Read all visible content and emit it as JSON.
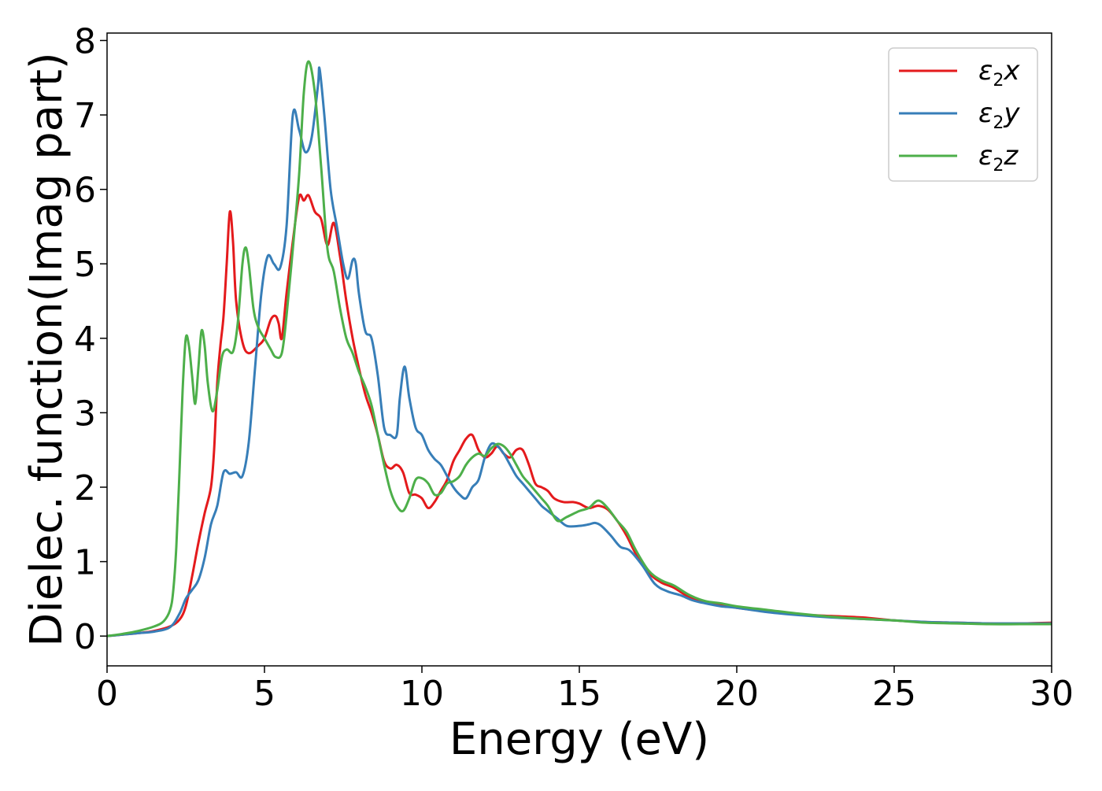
{
  "chart_data": {
    "type": "line",
    "title": "",
    "xlabel": "Energy (eV)",
    "ylabel": "Dielec. function(Imag part)",
    "xlim": [
      0,
      30
    ],
    "ylim": [
      -0.4,
      8.1
    ],
    "xticks": [
      0,
      5,
      10,
      15,
      20,
      25,
      30
    ],
    "yticks": [
      0,
      1,
      2,
      3,
      4,
      5,
      6,
      7,
      8
    ],
    "grid": false,
    "legend_position": "top-right",
    "series": [
      {
        "name": "ε₂x",
        "legend": {
          "base": "ε",
          "sub": "2",
          "tail": "x"
        },
        "color": "#e41a1c",
        "points": [
          [
            0,
            0.0
          ],
          [
            0.5,
            0.02
          ],
          [
            1.0,
            0.04
          ],
          [
            1.5,
            0.07
          ],
          [
            2.0,
            0.13
          ],
          [
            2.3,
            0.22
          ],
          [
            2.5,
            0.4
          ],
          [
            2.7,
            0.8
          ],
          [
            2.9,
            1.25
          ],
          [
            3.1,
            1.65
          ],
          [
            3.3,
            2.0
          ],
          [
            3.4,
            2.5
          ],
          [
            3.5,
            3.4
          ],
          [
            3.6,
            3.9
          ],
          [
            3.7,
            4.3
          ],
          [
            3.8,
            5.0
          ],
          [
            3.9,
            5.7
          ],
          [
            4.0,
            5.3
          ],
          [
            4.1,
            4.5
          ],
          [
            4.3,
            3.95
          ],
          [
            4.5,
            3.8
          ],
          [
            4.8,
            3.9
          ],
          [
            5.0,
            4.0
          ],
          [
            5.2,
            4.25
          ],
          [
            5.35,
            4.3
          ],
          [
            5.45,
            4.2
          ],
          [
            5.55,
            4.0
          ],
          [
            5.7,
            4.6
          ],
          [
            5.9,
            5.3
          ],
          [
            6.1,
            5.9
          ],
          [
            6.25,
            5.85
          ],
          [
            6.4,
            5.92
          ],
          [
            6.6,
            5.7
          ],
          [
            6.8,
            5.6
          ],
          [
            7.0,
            5.25
          ],
          [
            7.2,
            5.55
          ],
          [
            7.4,
            5.1
          ],
          [
            7.6,
            4.5
          ],
          [
            7.8,
            4.0
          ],
          [
            8.0,
            3.6
          ],
          [
            8.2,
            3.25
          ],
          [
            8.4,
            3.0
          ],
          [
            8.6,
            2.7
          ],
          [
            8.8,
            2.35
          ],
          [
            9.0,
            2.25
          ],
          [
            9.2,
            2.3
          ],
          [
            9.4,
            2.2
          ],
          [
            9.6,
            1.92
          ],
          [
            9.8,
            1.9
          ],
          [
            10.0,
            1.85
          ],
          [
            10.2,
            1.72
          ],
          [
            10.4,
            1.8
          ],
          [
            10.6,
            1.95
          ],
          [
            10.8,
            2.1
          ],
          [
            11.0,
            2.35
          ],
          [
            11.2,
            2.5
          ],
          [
            11.4,
            2.65
          ],
          [
            11.6,
            2.7
          ],
          [
            11.8,
            2.5
          ],
          [
            12.0,
            2.4
          ],
          [
            12.2,
            2.45
          ],
          [
            12.4,
            2.55
          ],
          [
            12.6,
            2.45
          ],
          [
            12.8,
            2.4
          ],
          [
            13.0,
            2.5
          ],
          [
            13.2,
            2.5
          ],
          [
            13.4,
            2.3
          ],
          [
            13.6,
            2.05
          ],
          [
            13.8,
            2.0
          ],
          [
            14.0,
            1.95
          ],
          [
            14.2,
            1.85
          ],
          [
            14.5,
            1.8
          ],
          [
            14.8,
            1.8
          ],
          [
            15.0,
            1.78
          ],
          [
            15.3,
            1.72
          ],
          [
            15.6,
            1.75
          ],
          [
            15.9,
            1.7
          ],
          [
            16.2,
            1.55
          ],
          [
            16.5,
            1.35
          ],
          [
            16.8,
            1.1
          ],
          [
            17.2,
            0.85
          ],
          [
            17.6,
            0.72
          ],
          [
            18.0,
            0.65
          ],
          [
            18.5,
            0.52
          ],
          [
            19.0,
            0.45
          ],
          [
            19.5,
            0.42
          ],
          [
            20.0,
            0.38
          ],
          [
            21.0,
            0.33
          ],
          [
            22.0,
            0.29
          ],
          [
            23.0,
            0.27
          ],
          [
            24.0,
            0.25
          ],
          [
            25.0,
            0.21
          ],
          [
            26.0,
            0.19
          ],
          [
            27.0,
            0.18
          ],
          [
            28.0,
            0.17
          ],
          [
            29.0,
            0.17
          ],
          [
            30.0,
            0.18
          ]
        ]
      },
      {
        "name": "ε₂y",
        "legend": {
          "base": "ε",
          "sub": "2",
          "tail": "y"
        },
        "color": "#377eb8",
        "points": [
          [
            0,
            0.0
          ],
          [
            0.5,
            0.02
          ],
          [
            1.0,
            0.04
          ],
          [
            1.5,
            0.06
          ],
          [
            2.0,
            0.12
          ],
          [
            2.3,
            0.3
          ],
          [
            2.5,
            0.5
          ],
          [
            2.7,
            0.62
          ],
          [
            2.9,
            0.75
          ],
          [
            3.1,
            1.05
          ],
          [
            3.3,
            1.5
          ],
          [
            3.5,
            1.75
          ],
          [
            3.7,
            2.2
          ],
          [
            3.9,
            2.18
          ],
          [
            4.1,
            2.2
          ],
          [
            4.3,
            2.15
          ],
          [
            4.5,
            2.6
          ],
          [
            4.7,
            3.6
          ],
          [
            4.9,
            4.6
          ],
          [
            5.1,
            5.1
          ],
          [
            5.3,
            5.0
          ],
          [
            5.5,
            4.95
          ],
          [
            5.7,
            5.5
          ],
          [
            5.9,
            7.0
          ],
          [
            6.1,
            6.8
          ],
          [
            6.3,
            6.5
          ],
          [
            6.5,
            6.7
          ],
          [
            6.7,
            7.4
          ],
          [
            6.75,
            7.62
          ],
          [
            6.9,
            7.0
          ],
          [
            7.1,
            6.0
          ],
          [
            7.3,
            5.5
          ],
          [
            7.5,
            5.0
          ],
          [
            7.65,
            4.8
          ],
          [
            7.8,
            5.05
          ],
          [
            7.9,
            5.0
          ],
          [
            8.0,
            4.6
          ],
          [
            8.2,
            4.1
          ],
          [
            8.4,
            4.0
          ],
          [
            8.6,
            3.5
          ],
          [
            8.8,
            2.8
          ],
          [
            9.0,
            2.7
          ],
          [
            9.2,
            2.7
          ],
          [
            9.3,
            3.2
          ],
          [
            9.45,
            3.62
          ],
          [
            9.6,
            3.2
          ],
          [
            9.8,
            2.8
          ],
          [
            10.0,
            2.7
          ],
          [
            10.2,
            2.5
          ],
          [
            10.4,
            2.38
          ],
          [
            10.6,
            2.3
          ],
          [
            10.8,
            2.15
          ],
          [
            11.0,
            2.0
          ],
          [
            11.2,
            1.9
          ],
          [
            11.4,
            1.85
          ],
          [
            11.6,
            2.0
          ],
          [
            11.8,
            2.1
          ],
          [
            12.0,
            2.4
          ],
          [
            12.2,
            2.58
          ],
          [
            12.4,
            2.55
          ],
          [
            12.6,
            2.45
          ],
          [
            12.8,
            2.3
          ],
          [
            13.0,
            2.15
          ],
          [
            13.2,
            2.05
          ],
          [
            13.4,
            1.95
          ],
          [
            13.6,
            1.85
          ],
          [
            13.8,
            1.75
          ],
          [
            14.0,
            1.68
          ],
          [
            14.3,
            1.58
          ],
          [
            14.6,
            1.48
          ],
          [
            15.0,
            1.48
          ],
          [
            15.3,
            1.5
          ],
          [
            15.5,
            1.52
          ],
          [
            15.7,
            1.48
          ],
          [
            16.0,
            1.35
          ],
          [
            16.3,
            1.2
          ],
          [
            16.6,
            1.15
          ],
          [
            17.0,
            0.95
          ],
          [
            17.4,
            0.7
          ],
          [
            17.8,
            0.6
          ],
          [
            18.2,
            0.55
          ],
          [
            18.6,
            0.48
          ],
          [
            19.0,
            0.44
          ],
          [
            19.5,
            0.4
          ],
          [
            20.0,
            0.38
          ],
          [
            21.0,
            0.32
          ],
          [
            22.0,
            0.28
          ],
          [
            23.0,
            0.25
          ],
          [
            24.0,
            0.23
          ],
          [
            25.0,
            0.21
          ],
          [
            26.0,
            0.19
          ],
          [
            27.0,
            0.18
          ],
          [
            28.0,
            0.17
          ],
          [
            29.0,
            0.17
          ],
          [
            30.0,
            0.17
          ]
        ]
      },
      {
        "name": "ε₂z",
        "legend": {
          "base": "ε",
          "sub": "2",
          "tail": "z"
        },
        "color": "#4daf4a",
        "points": [
          [
            0,
            0.0
          ],
          [
            0.5,
            0.03
          ],
          [
            1.0,
            0.07
          ],
          [
            1.5,
            0.13
          ],
          [
            1.8,
            0.2
          ],
          [
            2.0,
            0.35
          ],
          [
            2.1,
            0.6
          ],
          [
            2.2,
            1.2
          ],
          [
            2.3,
            2.2
          ],
          [
            2.4,
            3.3
          ],
          [
            2.5,
            4.0
          ],
          [
            2.6,
            3.9
          ],
          [
            2.7,
            3.5
          ],
          [
            2.8,
            3.12
          ],
          [
            2.9,
            3.6
          ],
          [
            3.0,
            4.1
          ],
          [
            3.1,
            3.9
          ],
          [
            3.2,
            3.4
          ],
          [
            3.35,
            3.02
          ],
          [
            3.5,
            3.3
          ],
          [
            3.65,
            3.75
          ],
          [
            3.8,
            3.85
          ],
          [
            4.0,
            3.82
          ],
          [
            4.15,
            4.2
          ],
          [
            4.3,
            5.0
          ],
          [
            4.4,
            5.22
          ],
          [
            4.5,
            5.0
          ],
          [
            4.65,
            4.4
          ],
          [
            4.8,
            4.15
          ],
          [
            5.0,
            4.0
          ],
          [
            5.2,
            3.85
          ],
          [
            5.35,
            3.75
          ],
          [
            5.55,
            3.8
          ],
          [
            5.7,
            4.3
          ],
          [
            5.9,
            5.2
          ],
          [
            6.1,
            6.2
          ],
          [
            6.25,
            7.3
          ],
          [
            6.4,
            7.72
          ],
          [
            6.6,
            7.3
          ],
          [
            6.8,
            6.3
          ],
          [
            7.0,
            5.2
          ],
          [
            7.2,
            4.9
          ],
          [
            7.4,
            4.4
          ],
          [
            7.6,
            4.0
          ],
          [
            7.8,
            3.8
          ],
          [
            8.0,
            3.55
          ],
          [
            8.2,
            3.35
          ],
          [
            8.4,
            3.1
          ],
          [
            8.6,
            2.7
          ],
          [
            8.8,
            2.3
          ],
          [
            9.0,
            1.95
          ],
          [
            9.2,
            1.75
          ],
          [
            9.4,
            1.68
          ],
          [
            9.6,
            1.85
          ],
          [
            9.8,
            2.1
          ],
          [
            10.0,
            2.12
          ],
          [
            10.2,
            2.05
          ],
          [
            10.4,
            1.9
          ],
          [
            10.6,
            1.92
          ],
          [
            10.8,
            2.05
          ],
          [
            11.0,
            2.08
          ],
          [
            11.2,
            2.15
          ],
          [
            11.4,
            2.3
          ],
          [
            11.6,
            2.4
          ],
          [
            11.8,
            2.45
          ],
          [
            12.0,
            2.42
          ],
          [
            12.2,
            2.52
          ],
          [
            12.4,
            2.58
          ],
          [
            12.6,
            2.55
          ],
          [
            12.8,
            2.45
          ],
          [
            13.0,
            2.3
          ],
          [
            13.2,
            2.15
          ],
          [
            13.4,
            2.05
          ],
          [
            13.6,
            1.95
          ],
          [
            13.8,
            1.85
          ],
          [
            14.0,
            1.75
          ],
          [
            14.3,
            1.55
          ],
          [
            14.6,
            1.6
          ],
          [
            15.0,
            1.68
          ],
          [
            15.3,
            1.72
          ],
          [
            15.6,
            1.82
          ],
          [
            15.9,
            1.72
          ],
          [
            16.2,
            1.55
          ],
          [
            16.5,
            1.4
          ],
          [
            16.8,
            1.15
          ],
          [
            17.2,
            0.88
          ],
          [
            17.6,
            0.75
          ],
          [
            18.0,
            0.68
          ],
          [
            18.5,
            0.55
          ],
          [
            19.0,
            0.47
          ],
          [
            19.5,
            0.44
          ],
          [
            20.0,
            0.4
          ],
          [
            21.0,
            0.35
          ],
          [
            22.0,
            0.3
          ],
          [
            23.0,
            0.26
          ],
          [
            24.0,
            0.23
          ],
          [
            25.0,
            0.21
          ],
          [
            26.0,
            0.18
          ],
          [
            27.0,
            0.17
          ],
          [
            28.0,
            0.16
          ],
          [
            29.0,
            0.16
          ],
          [
            30.0,
            0.16
          ]
        ]
      }
    ]
  }
}
